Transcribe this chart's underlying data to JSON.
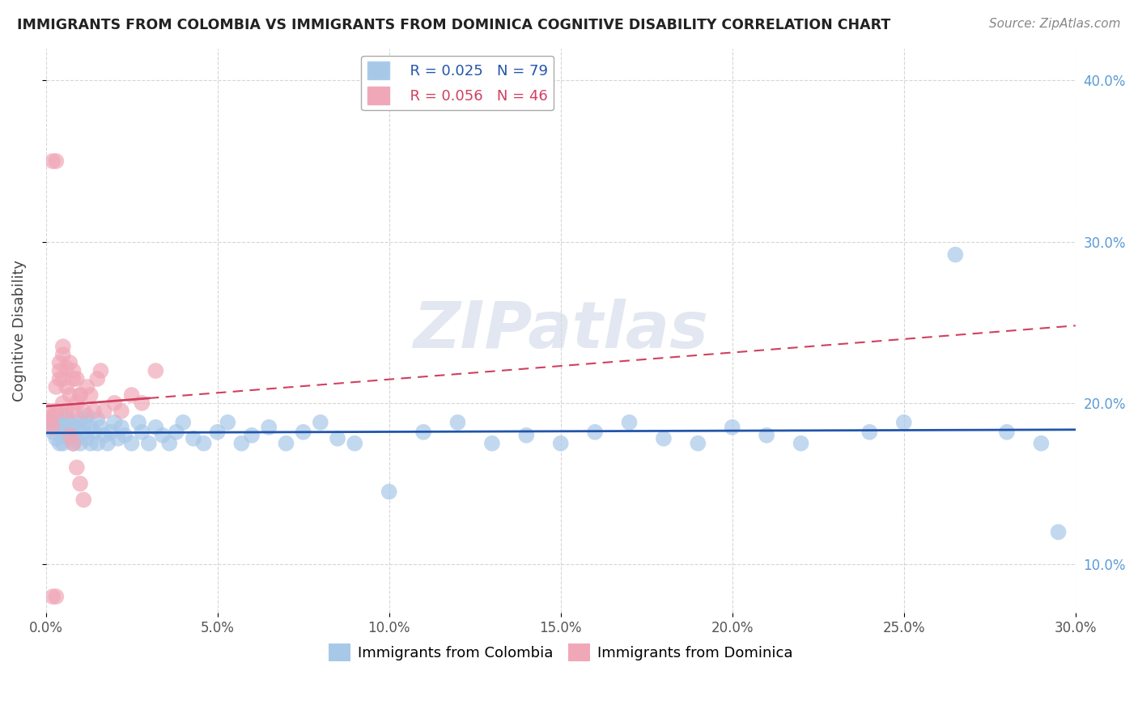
{
  "title": "IMMIGRANTS FROM COLOMBIA VS IMMIGRANTS FROM DOMINICA COGNITIVE DISABILITY CORRELATION CHART",
  "source": "Source: ZipAtlas.com",
  "ylabel": "Cognitive Disability",
  "xlim": [
    0.0,
    0.3
  ],
  "ylim": [
    0.07,
    0.42
  ],
  "xticks": [
    0.0,
    0.05,
    0.1,
    0.15,
    0.2,
    0.25,
    0.3
  ],
  "yticks_left": [],
  "yticks_right": [
    0.1,
    0.2,
    0.3,
    0.4
  ],
  "colombia_color": "#a8c8e8",
  "dominica_color": "#f0a8b8",
  "colombia_line_color": "#2255aa",
  "dominica_line_color": "#d04060",
  "colombia_R": 0.025,
  "colombia_N": 79,
  "dominica_R": 0.056,
  "dominica_N": 46,
  "colombia_x": [
    0.001,
    0.001,
    0.002,
    0.002,
    0.003,
    0.003,
    0.004,
    0.004,
    0.005,
    0.005,
    0.005,
    0.006,
    0.006,
    0.007,
    0.007,
    0.007,
    0.008,
    0.008,
    0.009,
    0.009,
    0.01,
    0.01,
    0.011,
    0.011,
    0.012,
    0.012,
    0.013,
    0.013,
    0.014,
    0.015,
    0.015,
    0.016,
    0.017,
    0.018,
    0.019,
    0.02,
    0.021,
    0.022,
    0.023,
    0.025,
    0.027,
    0.028,
    0.03,
    0.032,
    0.034,
    0.036,
    0.038,
    0.04,
    0.043,
    0.046,
    0.05,
    0.053,
    0.057,
    0.06,
    0.065,
    0.07,
    0.075,
    0.08,
    0.085,
    0.09,
    0.1,
    0.11,
    0.12,
    0.13,
    0.14,
    0.15,
    0.16,
    0.17,
    0.18,
    0.19,
    0.2,
    0.21,
    0.22,
    0.24,
    0.25,
    0.265,
    0.28,
    0.29,
    0.295
  ],
  "colombia_y": [
    0.19,
    0.185,
    0.182,
    0.188,
    0.178,
    0.192,
    0.185,
    0.175,
    0.182,
    0.19,
    0.175,
    0.185,
    0.192,
    0.178,
    0.185,
    0.188,
    0.18,
    0.175,
    0.185,
    0.178,
    0.19,
    0.175,
    0.182,
    0.188,
    0.178,
    0.192,
    0.185,
    0.175,
    0.182,
    0.19,
    0.175,
    0.185,
    0.18,
    0.175,
    0.182,
    0.188,
    0.178,
    0.185,
    0.18,
    0.175,
    0.188,
    0.182,
    0.175,
    0.185,
    0.18,
    0.175,
    0.182,
    0.188,
    0.178,
    0.175,
    0.182,
    0.188,
    0.175,
    0.18,
    0.185,
    0.175,
    0.182,
    0.188,
    0.178,
    0.175,
    0.145,
    0.182,
    0.188,
    0.175,
    0.18,
    0.175,
    0.182,
    0.188,
    0.178,
    0.175,
    0.185,
    0.18,
    0.175,
    0.182,
    0.188,
    0.292,
    0.182,
    0.175,
    0.12
  ],
  "dominica_x": [
    0.001,
    0.001,
    0.002,
    0.002,
    0.003,
    0.003,
    0.004,
    0.004,
    0.005,
    0.005,
    0.005,
    0.006,
    0.006,
    0.007,
    0.007,
    0.008,
    0.008,
    0.009,
    0.009,
    0.01,
    0.011,
    0.012,
    0.013,
    0.014,
    0.015,
    0.016,
    0.017,
    0.02,
    0.022,
    0.025,
    0.028,
    0.032,
    0.002,
    0.003,
    0.004,
    0.005,
    0.006,
    0.007,
    0.008,
    0.009,
    0.01,
    0.011,
    0.002,
    0.003,
    0.008,
    0.01
  ],
  "dominica_y": [
    0.195,
    0.188,
    0.185,
    0.192,
    0.21,
    0.195,
    0.225,
    0.215,
    0.23,
    0.235,
    0.215,
    0.222,
    0.21,
    0.225,
    0.205,
    0.215,
    0.195,
    0.215,
    0.2,
    0.205,
    0.195,
    0.21,
    0.205,
    0.195,
    0.215,
    0.22,
    0.195,
    0.2,
    0.195,
    0.205,
    0.2,
    0.22,
    0.35,
    0.35,
    0.22,
    0.2,
    0.195,
    0.18,
    0.175,
    0.16,
    0.15,
    0.14,
    0.08,
    0.08,
    0.22,
    0.205
  ],
  "watermark": "ZIPatlas",
  "background_color": "#ffffff",
  "grid_color": "#cccccc",
  "colombia_trend": [
    0.1815,
    0.1835
  ],
  "dominica_trend": [
    0.198,
    0.248
  ]
}
